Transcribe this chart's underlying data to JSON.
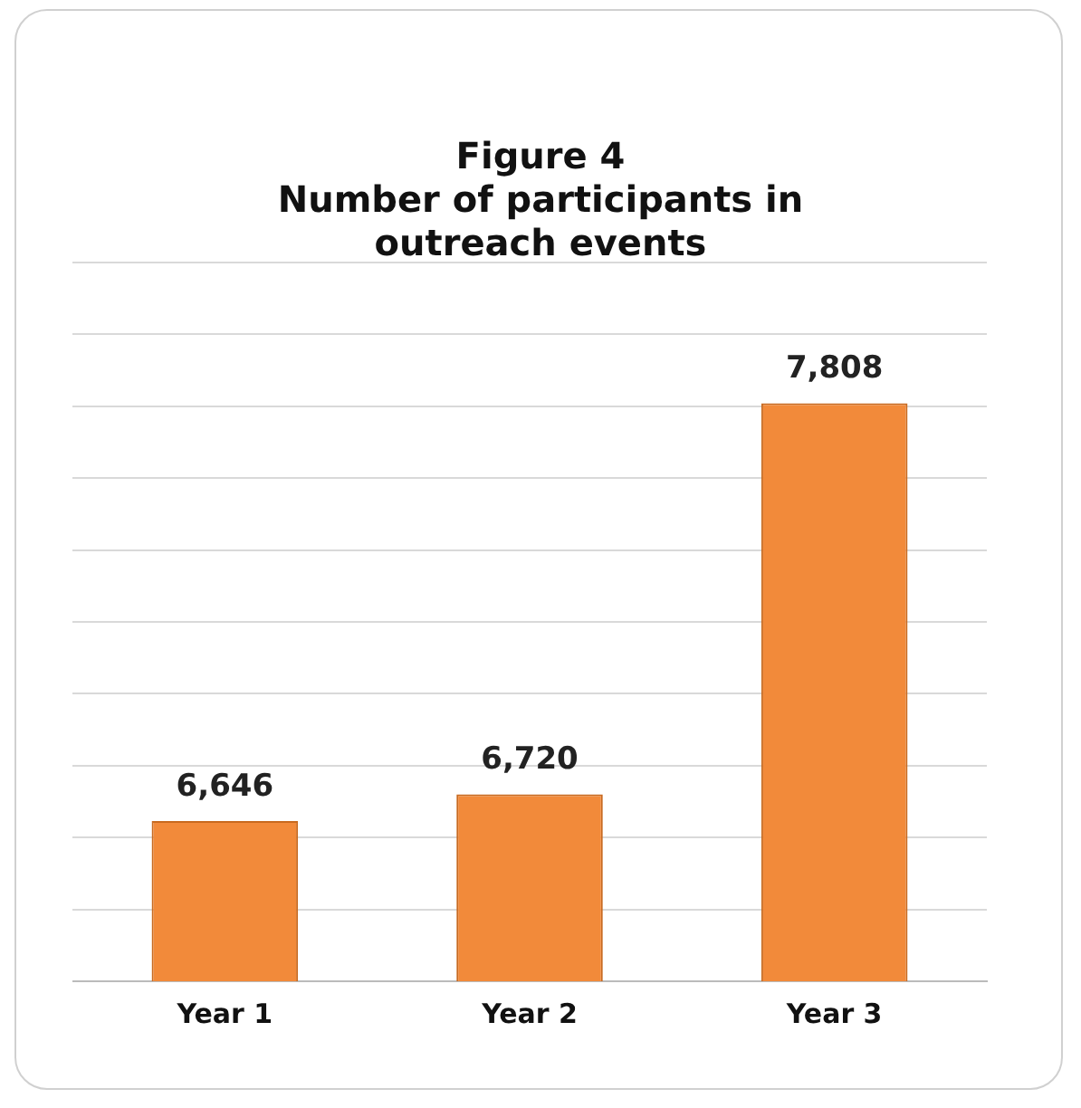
{
  "chart_data": {
    "type": "bar",
    "title": "Figure 4",
    "subtitle": "Number of participants in outreach events",
    "categories": [
      "Year 1",
      "Year 2",
      "Year 3"
    ],
    "values": [
      6646,
      6720,
      7808
    ],
    "color": "#f28a3a",
    "value_labels": [
      "6,646",
      "6,720",
      "7,808"
    ],
    "grid": "y",
    "tick_labels": "x",
    "legend": false
  }
}
